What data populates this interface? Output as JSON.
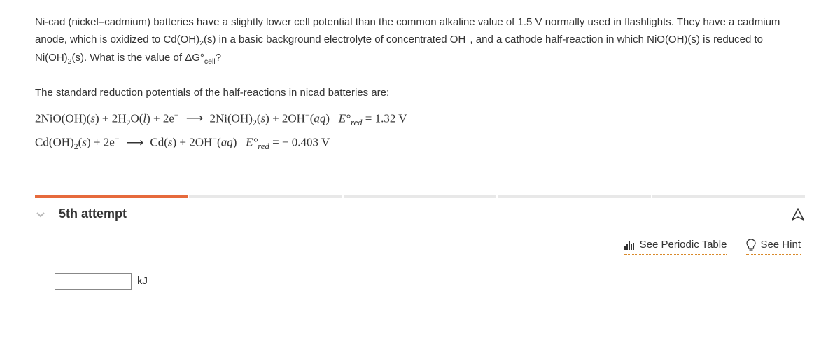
{
  "problem": {
    "p1_a": "Ni-cad (nickel–cadmium) batteries have a slightly lower cell potential than the common alkaline value of 1.5 V normally used in flashlights. They have a cadmium anode, which is oxidized to Cd(OH)",
    "p1_b": "(s) in a basic background electrolyte of concentrated OH",
    "p1_c": ", and a cathode half-reaction in which NiO(OH)(s) is reduced to Ni(OH)",
    "p1_d": "(s). What is the value of ΔG°",
    "p1_e": "?",
    "intro": "The standard reduction potentials of the half-reactions in nicad batteries are:",
    "eq1": {
      "lhs_a": "2NiO(OH)(",
      "lhs_b": ") + 2H",
      "lhs_c": "O(",
      "lhs_d": ") + 2e",
      "rhs_a": "2Ni(OH)",
      "rhs_b": "(",
      "rhs_c": ") + 2OH",
      "rhs_d": "(",
      "rhs_e": ")",
      "val": " = 1.32 V"
    },
    "eq2": {
      "lhs_a": "Cd(OH)",
      "lhs_b": "(",
      "lhs_c": ") + 2e",
      "rhs_a": "Cd(",
      "rhs_b": ") + 2OH",
      "rhs_c": "(",
      "rhs_d": ")",
      "val": " = − 0.403 V"
    },
    "Esym": "E°",
    "red": "red",
    "s": "s",
    "l": "l",
    "aq": "aq",
    "two": "2",
    "minus": "−",
    "cell": "cell",
    "arrow": "⟶"
  },
  "attempt": {
    "label": "5th attempt",
    "total_segments": 5,
    "used_segments": 1
  },
  "helpers": {
    "periodic": "See Periodic Table",
    "hint": "See Hint"
  },
  "answer": {
    "value": "",
    "placeholder": "",
    "unit": "kJ"
  },
  "colors": {
    "accent": "#e66a3c",
    "dotted": "#d98a2b"
  }
}
